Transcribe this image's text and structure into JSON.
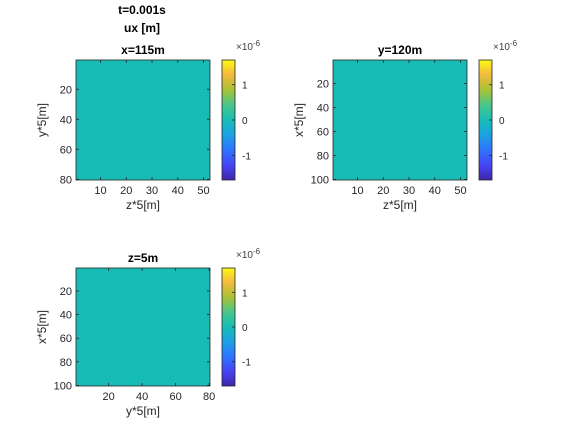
{
  "figure": {
    "suptitle_lines": [
      "t=0.001s",
      "ux [m]"
    ],
    "colors": {
      "field": "#17BDB5",
      "axis": "#262626",
      "background": "#ffffff"
    }
  },
  "chart_data": [
    {
      "type": "heatmap",
      "title": "x=115m",
      "xlabel": "z*5[m]",
      "ylabel": "y*5[m]",
      "xlim": [
        0.5,
        52.5
      ],
      "ylim": [
        0.5,
        80.5
      ],
      "xticks": [
        10,
        20,
        30,
        40,
        50
      ],
      "yticks": [
        20,
        40,
        60,
        80
      ],
      "y_reversed": true,
      "value": 0,
      "colorbar": {
        "ticks": [
          -1,
          0,
          1
        ],
        "tick_labels": [
          "-1",
          "0",
          "1"
        ],
        "exponent": "×10",
        "exponent_power": "-6",
        "range": [
          -1.7,
          1.7
        ]
      }
    },
    {
      "type": "heatmap",
      "title": "y=120m",
      "xlabel": "z*5[m]",
      "ylabel": "x*5[m]",
      "xlim": [
        0.5,
        52.5
      ],
      "ylim": [
        0.5,
        100.5
      ],
      "xticks": [
        10,
        20,
        30,
        40,
        50
      ],
      "yticks": [
        20,
        40,
        60,
        80,
        100
      ],
      "y_reversed": true,
      "value": 0,
      "colorbar": {
        "ticks": [
          -1,
          0,
          1
        ],
        "tick_labels": [
          "-1",
          "0",
          "1"
        ],
        "exponent": "×10",
        "exponent_power": "-6",
        "range": [
          -1.7,
          1.7
        ]
      }
    },
    {
      "type": "heatmap",
      "title": "z=5m",
      "xlabel": "y*5[m]",
      "ylabel": "x*5[m]",
      "xlim": [
        0.5,
        80.5
      ],
      "ylim": [
        0.5,
        100.5
      ],
      "xticks": [
        20,
        40,
        60,
        80
      ],
      "yticks": [
        20,
        40,
        60,
        80,
        100
      ],
      "y_reversed": true,
      "value": 0,
      "colorbar": {
        "ticks": [
          -1,
          0,
          1
        ],
        "tick_labels": [
          "-1",
          "0",
          "1"
        ],
        "exponent": "×10",
        "exponent_power": "-6",
        "range": [
          -1.7,
          1.7
        ]
      }
    }
  ]
}
